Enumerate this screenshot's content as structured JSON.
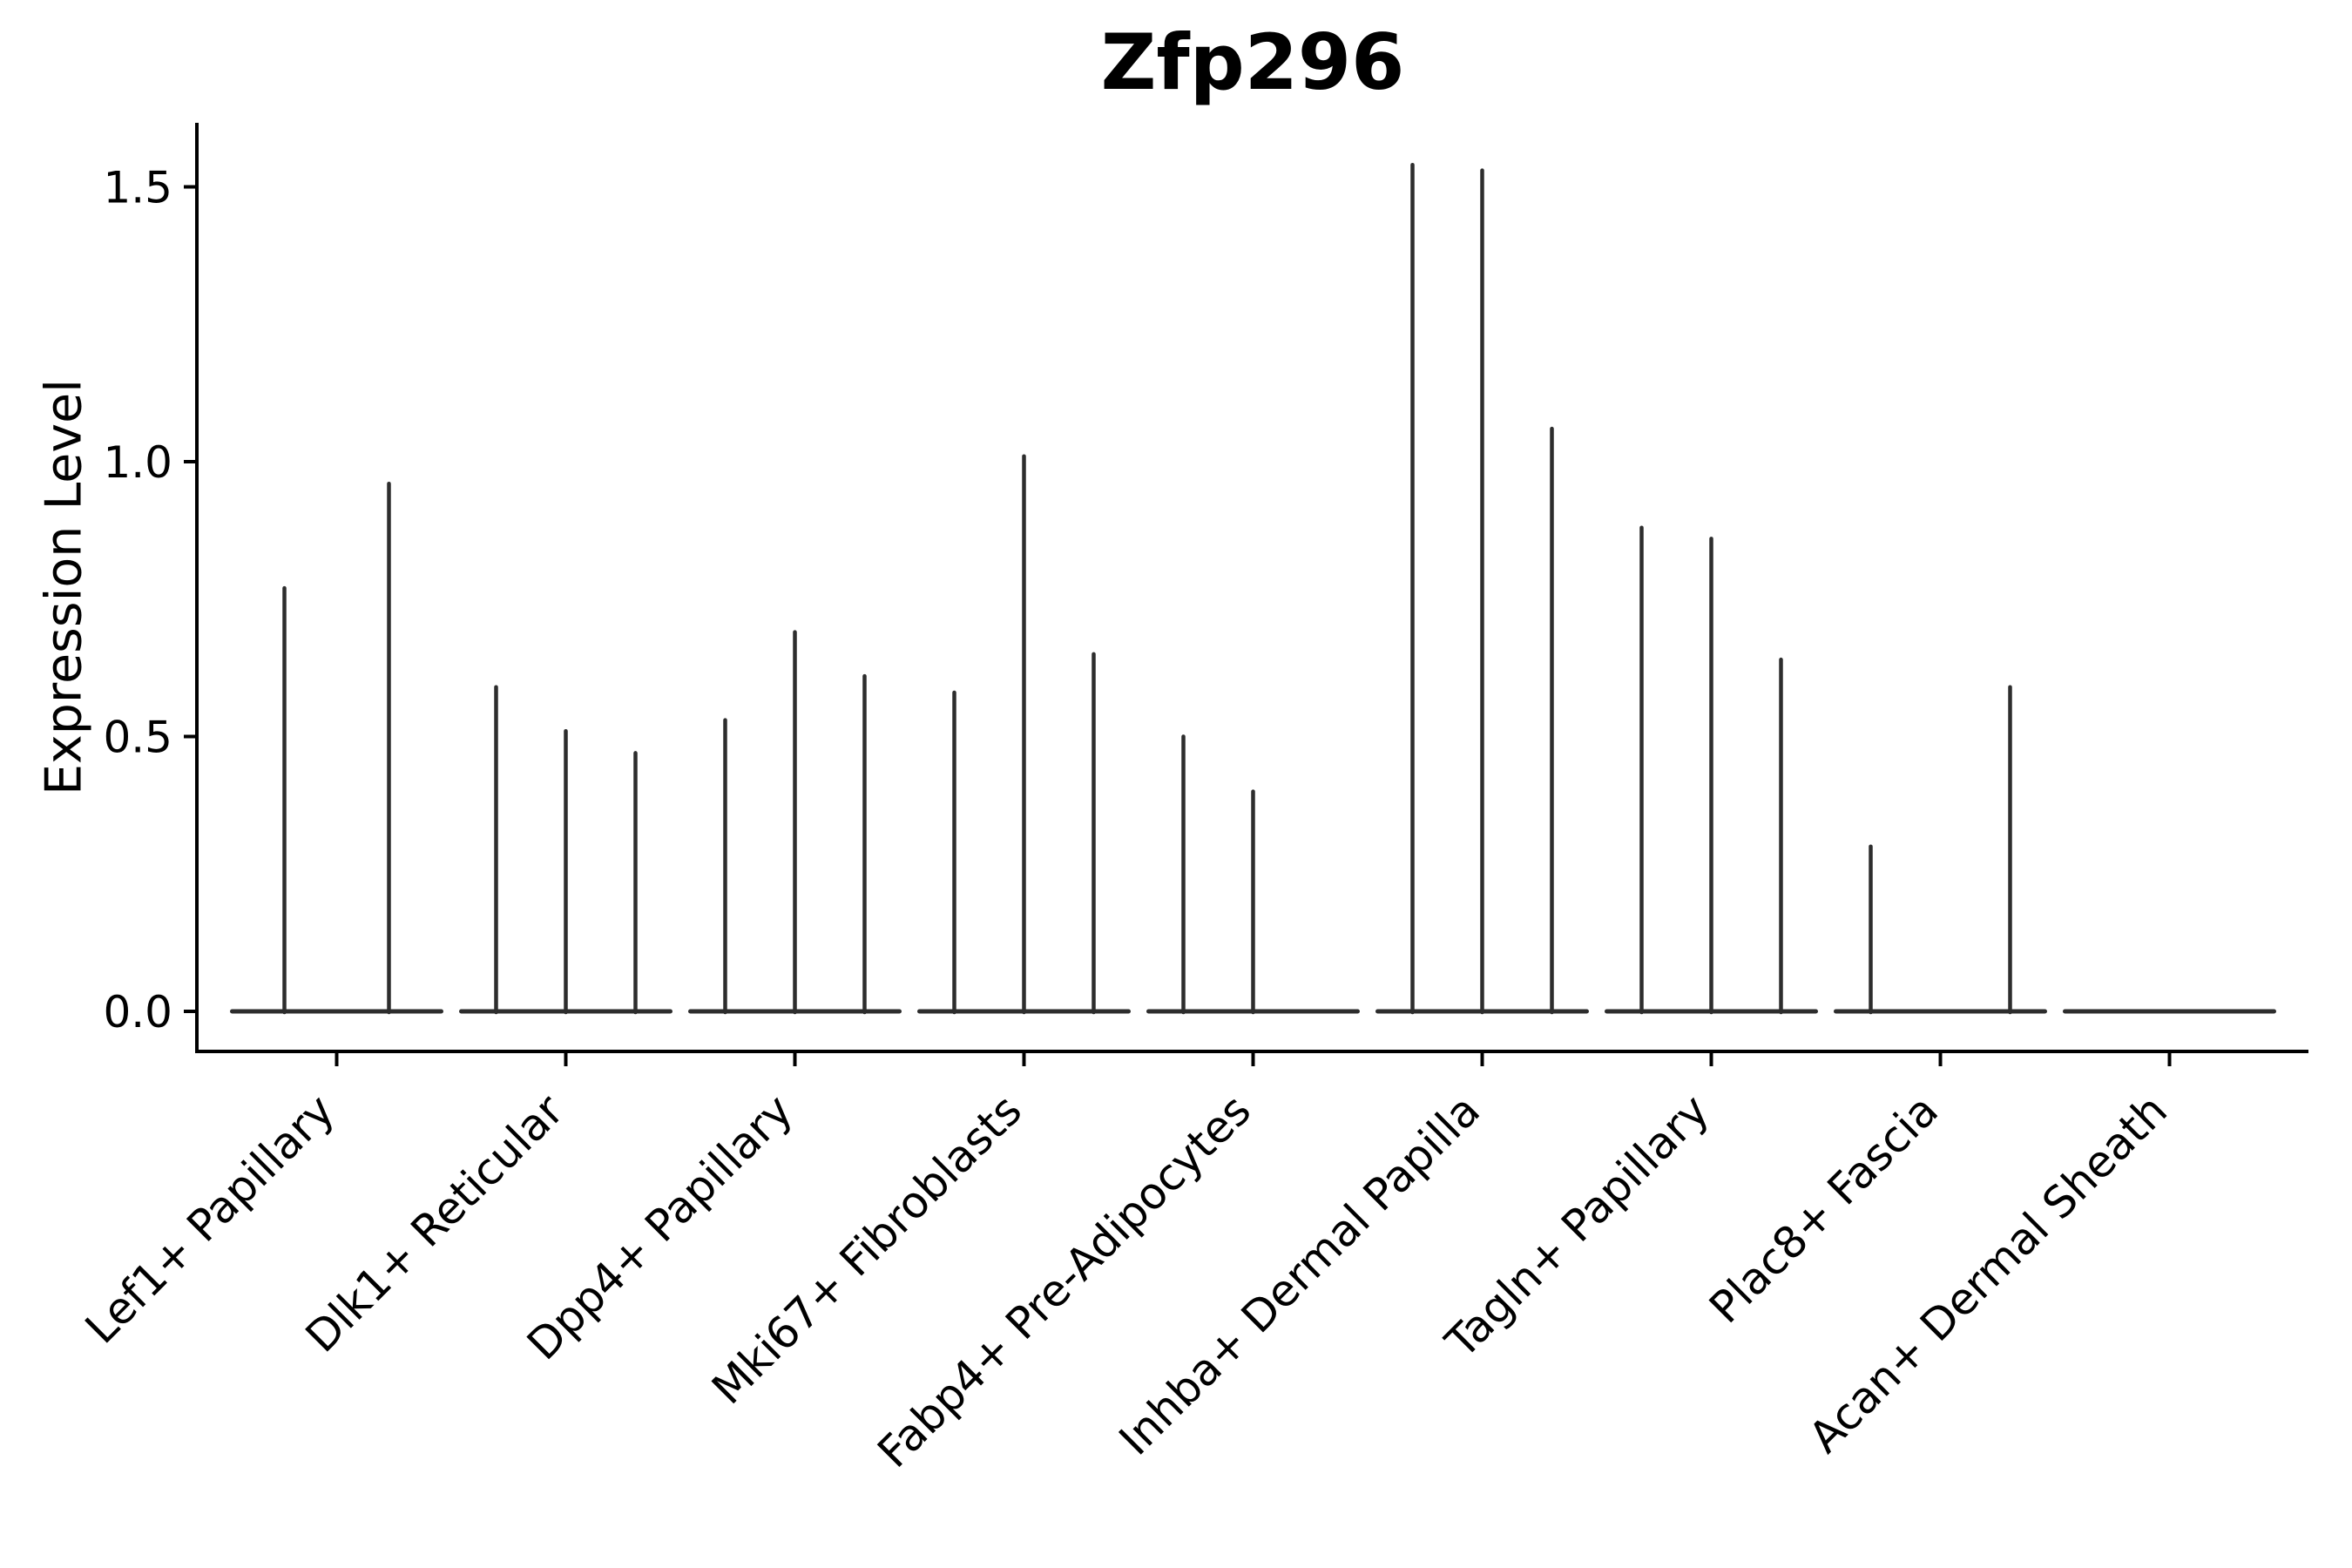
{
  "chart_data": {
    "type": "violin",
    "title": "Zfp296",
    "ylabel": "Expression Level",
    "xlabel": "",
    "yticks": [
      "0.0",
      "0.5",
      "1.0",
      "1.5"
    ],
    "ytick_values": [
      0.0,
      0.5,
      1.0,
      1.5
    ],
    "ylim": [
      -0.07,
      1.62
    ],
    "grid": false,
    "legend": "none",
    "categories": [
      "Lef1+ Papillary",
      "Dlk1+ Reticular",
      "Dpp4+ Papillary",
      "Mki67+ Fibroblasts",
      "Fabp4+ Pre-Adipocytes",
      "Inhba+ Dermal Papilla",
      "Tagln+ Papillary",
      "Plac8+ Fascia",
      "Acan+ Dermal Sheath"
    ],
    "groups": [
      {
        "category": "Lef1+ Papillary",
        "violin_maxima": [
          0.77,
          0.96
        ]
      },
      {
        "category": "Dlk1+ Reticular",
        "violin_maxima": [
          0.59,
          0.51,
          0.47
        ]
      },
      {
        "category": "Dpp4+ Papillary",
        "violin_maxima": [
          0.53,
          0.69,
          0.61
        ]
      },
      {
        "category": "Mki67+ Fibroblasts",
        "violin_maxima": [
          0.58,
          1.01,
          0.65
        ]
      },
      {
        "category": "Fabp4+ Pre-Adipocytes",
        "violin_maxima": [
          0.5,
          0.4,
          0.0
        ]
      },
      {
        "category": "Inhba+ Dermal Papilla",
        "violin_maxima": [
          1.54,
          1.53,
          1.06
        ]
      },
      {
        "category": "Tagln+ Papillary",
        "violin_maxima": [
          0.88,
          0.86,
          0.64
        ]
      },
      {
        "category": "Plac8+ Fascia",
        "violin_maxima": [
          0.3,
          0.0,
          0.59
        ]
      },
      {
        "category": "Acan+ Dermal Sheath",
        "violin_maxima": [
          0.0,
          0.0,
          0.0
        ]
      }
    ],
    "style": {
      "violin_color": "#2d2d2d",
      "axis_color": "#000000",
      "background": "#ffffff"
    }
  }
}
